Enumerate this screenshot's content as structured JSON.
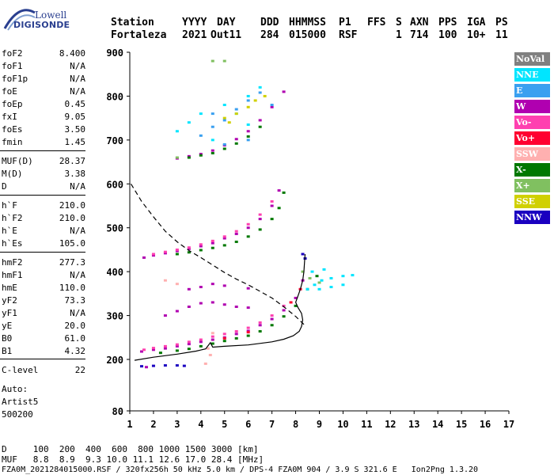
{
  "logo": {
    "line1": "Lowell",
    "line2": "DIGISONDE"
  },
  "header": {
    "labels": [
      "Station",
      "YYYY",
      "DAY",
      "DDD",
      "HHMMSS",
      "P1",
      "FFS",
      "S",
      "AXN",
      "PPS",
      "IGA",
      "PS"
    ],
    "values": [
      "Fortaleza",
      "2021",
      "Out11",
      "284",
      "015000",
      "RSF",
      "",
      "1",
      "714",
      "100",
      "10+",
      "11"
    ]
  },
  "params": [
    {
      "k": "foF2",
      "v": "8.400"
    },
    {
      "k": "foF1",
      "v": "N/A"
    },
    {
      "k": "foF1p",
      "v": "N/A"
    },
    {
      "k": "foE",
      "v": "N/A"
    },
    {
      "k": "foEp",
      "v": "0.45"
    },
    {
      "k": "fxI",
      "v": "9.05"
    },
    {
      "k": "foEs",
      "v": "3.50"
    },
    {
      "k": "fmin",
      "v": "1.45"
    },
    {
      "k": "MUF(D)",
      "v": "28.37"
    },
    {
      "k": "M(D)",
      "v": "3.38"
    },
    {
      "k": "D",
      "v": "N/A"
    },
    {
      "k": "h`F",
      "v": "210.0"
    },
    {
      "k": "h`F2",
      "v": "210.0"
    },
    {
      "k": "h`E",
      "v": "N/A"
    },
    {
      "k": "h`Es",
      "v": "105.0"
    },
    {
      "k": "hmF2",
      "v": "277.3"
    },
    {
      "k": "hmF1",
      "v": "N/A"
    },
    {
      "k": "hmE",
      "v": "110.0"
    },
    {
      "k": "yF2",
      "v": "73.3"
    },
    {
      "k": "yF1",
      "v": "N/A"
    },
    {
      "k": "yE",
      "v": "20.0"
    },
    {
      "k": "B0",
      "v": "61.0"
    },
    {
      "k": "B1",
      "v": "4.32"
    },
    {
      "k": "C-level",
      "v": "22"
    }
  ],
  "auto": [
    "Auto:",
    "Artist5",
    "500200"
  ],
  "legend": [
    {
      "label": "NoVal",
      "color": "#808080"
    },
    {
      "label": "NNE",
      "color": "#00e5ff"
    },
    {
      "label": "E",
      "color": "#3aa0f0"
    },
    {
      "label": "W",
      "color": "#b000b0"
    },
    {
      "label": "Vo-",
      "color": "#ff40b0"
    },
    {
      "label": "Vo+",
      "color": "#ff0030"
    },
    {
      "label": "SSW",
      "color": "#ffb0b0"
    },
    {
      "label": "X-",
      "color": "#007800"
    },
    {
      "label": "X+",
      "color": "#80c060"
    },
    {
      "label": "SSE",
      "color": "#d0d000"
    },
    {
      "label": "NNW",
      "color": "#1a00c0"
    }
  ],
  "footer": {
    "line1": "D     100  200  400  600  800 1000 1500 3000 [km]",
    "line2": "MUF   8.8  8.9  9.3 10.0 11.1 12.6 17.0 28.4 [MHz]",
    "line3": "FZA0M_2021284015000.RSF / 320fx256h 50 kHz 5.0 km / DPS-4 FZA0M 904 / 3.9 S 321.6 E   Ion2Png 1.3.20"
  },
  "chart_data": {
    "type": "scatter",
    "xlim": [
      1,
      17
    ],
    "ylim": [
      80,
      900
    ],
    "xticks": [
      1,
      2,
      3,
      4,
      5,
      6,
      7,
      8,
      9,
      10,
      11,
      12,
      13,
      14,
      15,
      16,
      17
    ],
    "yticks": [
      80,
      200,
      300,
      400,
      500,
      600,
      700,
      800,
      900
    ],
    "grid": "none",
    "legend_position": "right",
    "series": [
      {
        "name": "W",
        "color": "#b000b0",
        "points": [
          [
            1.5,
            218
          ],
          [
            2,
            222
          ],
          [
            2.5,
            225
          ],
          [
            3,
            230
          ],
          [
            3.5,
            235
          ],
          [
            4,
            240
          ],
          [
            4.5,
            245
          ],
          [
            5,
            250
          ],
          [
            5.5,
            258
          ],
          [
            6,
            265
          ],
          [
            6.5,
            278
          ],
          [
            7,
            292
          ],
          [
            7.5,
            312
          ],
          [
            8,
            340
          ],
          [
            8.3,
            380
          ],
          [
            1.6,
            432
          ],
          [
            2,
            437
          ],
          [
            2.5,
            442
          ],
          [
            3,
            447
          ],
          [
            3.5,
            452
          ],
          [
            4,
            458
          ],
          [
            4.5,
            465
          ],
          [
            5,
            476
          ],
          [
            5.5,
            486
          ],
          [
            6,
            500
          ],
          [
            6.5,
            520
          ],
          [
            7,
            550
          ],
          [
            7.3,
            585
          ],
          [
            3,
            658
          ],
          [
            3.5,
            663
          ],
          [
            4,
            668
          ],
          [
            4.5,
            676
          ],
          [
            5,
            688
          ],
          [
            5.5,
            702
          ],
          [
            6,
            720
          ],
          [
            6.5,
            745
          ],
          [
            7,
            775
          ],
          [
            7.5,
            810
          ],
          [
            2.5,
            300
          ],
          [
            3,
            310
          ],
          [
            3.5,
            320
          ],
          [
            4,
            328
          ],
          [
            4.5,
            330
          ],
          [
            5,
            325
          ],
          [
            5.5,
            320
          ],
          [
            6,
            318
          ],
          [
            3.5,
            360
          ],
          [
            4,
            365
          ],
          [
            4.5,
            372
          ],
          [
            5,
            368
          ],
          [
            6,
            362
          ],
          [
            1.7,
            182
          ]
        ]
      },
      {
        "name": "X-",
        "color": "#007800",
        "points": [
          [
            2.3,
            215
          ],
          [
            3,
            220
          ],
          [
            3.5,
            224
          ],
          [
            4,
            230
          ],
          [
            4.5,
            236
          ],
          [
            5,
            242
          ],
          [
            5.5,
            248
          ],
          [
            6,
            254
          ],
          [
            6.5,
            264
          ],
          [
            7,
            278
          ],
          [
            7.5,
            298
          ],
          [
            8,
            322
          ],
          [
            8.5,
            360
          ],
          [
            8.9,
            390
          ],
          [
            3,
            440
          ],
          [
            3.5,
            444
          ],
          [
            4,
            449
          ],
          [
            4.5,
            454
          ],
          [
            5,
            460
          ],
          [
            5.5,
            468
          ],
          [
            6,
            480
          ],
          [
            6.5,
            496
          ],
          [
            7,
            520
          ],
          [
            7.3,
            545
          ],
          [
            7.5,
            580
          ],
          [
            3.5,
            660
          ],
          [
            4,
            665
          ],
          [
            4.5,
            670
          ],
          [
            5,
            680
          ],
          [
            5.5,
            692
          ],
          [
            6,
            708
          ],
          [
            6.5,
            730
          ]
        ]
      },
      {
        "name": "Vo-",
        "color": "#ff40b0",
        "points": [
          [
            1.6,
            222
          ],
          [
            2,
            226
          ],
          [
            2.5,
            230
          ],
          [
            3,
            234
          ],
          [
            3.5,
            240
          ],
          [
            4,
            245
          ],
          [
            4.5,
            252
          ],
          [
            5,
            258
          ],
          [
            5.5,
            264
          ],
          [
            6,
            272
          ],
          [
            6.5,
            284
          ],
          [
            7,
            300
          ],
          [
            7.5,
            322
          ],
          [
            2,
            440
          ],
          [
            2.5,
            445
          ],
          [
            3,
            450
          ],
          [
            3.5,
            455
          ],
          [
            4,
            462
          ],
          [
            4.5,
            470
          ],
          [
            5,
            480
          ],
          [
            5.5,
            492
          ],
          [
            6,
            508
          ],
          [
            6.5,
            530
          ],
          [
            7,
            560
          ]
        ]
      },
      {
        "name": "NNE",
        "color": "#00e5ff",
        "points": [
          [
            8.5,
            360
          ],
          [
            8.8,
            370
          ],
          [
            9.1,
            380
          ],
          [
            9.5,
            385
          ],
          [
            10,
            390
          ],
          [
            10.4,
            392
          ],
          [
            9,
            360
          ],
          [
            9.5,
            365
          ],
          [
            10,
            370
          ],
          [
            8.7,
            400
          ],
          [
            9.2,
            405
          ],
          [
            3,
            720
          ],
          [
            3.5,
            740
          ],
          [
            4,
            760
          ],
          [
            5,
            780
          ],
          [
            6,
            800
          ],
          [
            6.5,
            820
          ],
          [
            4.5,
            700
          ],
          [
            5.5,
            760
          ],
          [
            6,
            735
          ]
        ]
      },
      {
        "name": "E",
        "color": "#3aa0f0",
        "points": [
          [
            4,
            710
          ],
          [
            4.5,
            730
          ],
          [
            5,
            745
          ],
          [
            5.5,
            770
          ],
          [
            6,
            790
          ],
          [
            6.5,
            808
          ],
          [
            5,
            690
          ],
          [
            6,
            700
          ],
          [
            4.5,
            760
          ],
          [
            7,
            780
          ]
        ]
      },
      {
        "name": "SSE",
        "color": "#d0d000",
        "points": [
          [
            5,
            750
          ],
          [
            5.5,
            760
          ],
          [
            6,
            775
          ],
          [
            6.3,
            790
          ],
          [
            6.7,
            800
          ],
          [
            5.2,
            740
          ]
        ]
      },
      {
        "name": "NNW",
        "color": "#1a00c0",
        "points": [
          [
            1.5,
            184
          ],
          [
            2,
            185
          ],
          [
            2.5,
            186
          ],
          [
            3,
            186
          ],
          [
            3.3,
            185
          ],
          [
            8.3,
            440
          ],
          [
            8.4,
            430
          ]
        ]
      },
      {
        "name": "SSW",
        "color": "#ffb0b0",
        "points": [
          [
            4.5,
            260
          ],
          [
            4.3,
            225
          ],
          [
            4.4,
            210
          ],
          [
            4.2,
            190
          ],
          [
            2.5,
            380
          ],
          [
            3,
            372
          ]
        ]
      },
      {
        "name": "X+",
        "color": "#80c060",
        "points": [
          [
            3,
            660
          ],
          [
            4.5,
            880
          ],
          [
            5,
            880
          ],
          [
            8.3,
            400
          ],
          [
            8.6,
            385
          ],
          [
            9,
            375
          ]
        ]
      },
      {
        "name": "Vo+",
        "color": "#ff0030",
        "points": [
          [
            7.8,
            330
          ],
          [
            8.2,
            360
          ],
          [
            5,
            248
          ],
          [
            6,
            262
          ]
        ]
      }
    ],
    "curves": [
      {
        "name": "virtual-height-profile",
        "style": "solid",
        "color": "#000000",
        "points": [
          [
            1.2,
            198
          ],
          [
            2,
            205
          ],
          [
            3,
            212
          ],
          [
            3.8,
            219
          ],
          [
            4.2,
            224
          ],
          [
            4.4,
            238
          ],
          [
            4.5,
            228
          ],
          [
            5,
            230
          ],
          [
            6,
            233
          ],
          [
            7,
            240
          ],
          [
            7.5,
            246
          ],
          [
            7.9,
            254
          ],
          [
            8.15,
            264
          ],
          [
            8.25,
            275
          ],
          [
            8.3,
            290
          ],
          [
            8.25,
            305
          ],
          [
            8.1,
            318
          ],
          [
            8,
            330
          ],
          [
            8.1,
            345
          ],
          [
            8.2,
            360
          ],
          [
            8.3,
            380
          ],
          [
            8.35,
            400
          ],
          [
            8.38,
            425
          ],
          [
            8.4,
            440
          ]
        ]
      },
      {
        "name": "electron-density-profile",
        "style": "dashed",
        "color": "#000000",
        "points": [
          [
            1.05,
            600
          ],
          [
            1.5,
            560
          ],
          [
            2,
            525
          ],
          [
            2.5,
            492
          ],
          [
            3,
            468
          ],
          [
            3.5,
            448
          ],
          [
            4,
            432
          ],
          [
            4.5,
            415
          ],
          [
            5,
            398
          ],
          [
            5.5,
            383
          ],
          [
            6,
            370
          ],
          [
            6.5,
            355
          ],
          [
            7,
            340
          ],
          [
            7.5,
            320
          ],
          [
            8,
            298
          ],
          [
            8.4,
            277
          ]
        ]
      }
    ]
  }
}
